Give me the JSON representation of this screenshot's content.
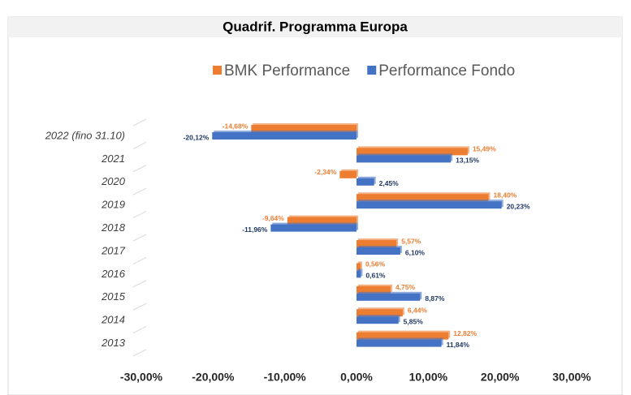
{
  "chart_data": {
    "type": "bar",
    "orientation": "horizontal",
    "title": "Quadrif. Programma Europa",
    "categories": [
      "2022 (fino 31.10)",
      "2021",
      "2020",
      "2019",
      "2018",
      "2017",
      "2016",
      "2015",
      "2014",
      "2013"
    ],
    "series": [
      {
        "name": "BMK Performance",
        "color": "#ed7d31",
        "values": [
          -14.68,
          15.49,
          -2.34,
          18.4,
          -9.64,
          5.57,
          0.56,
          4.75,
          6.44,
          12.82
        ],
        "value_labels": [
          "-14,68%",
          "15,49%",
          "-2,34%",
          "18,40%",
          "-9,64%",
          "5,57%",
          "0,56%",
          "4,75%",
          "6,44%",
          "12,82%"
        ]
      },
      {
        "name": "Performance Fondo",
        "color": "#4472c4",
        "values": [
          -20.12,
          13.15,
          2.45,
          20.23,
          -11.96,
          6.1,
          0.61,
          8.87,
          5.85,
          11.84
        ],
        "value_labels": [
          "-20,12%",
          "13,15%",
          "2,45%",
          "20,23%",
          "-11,96%",
          "6,10%",
          "0,61%",
          "8,87%",
          "5,85%",
          "11,84%"
        ]
      }
    ],
    "xlim": [
      -30,
      30
    ],
    "xticks": [
      {
        "value": -30,
        "label": "-30,00%"
      },
      {
        "value": -20,
        "label": "-20,00%"
      },
      {
        "value": -10,
        "label": "-10,00%"
      },
      {
        "value": 0,
        "label": "0,00%"
      },
      {
        "value": 10,
        "label": "10,00%"
      },
      {
        "value": 20,
        "label": "20,00%"
      },
      {
        "value": 30,
        "label": "30,00%"
      }
    ],
    "legend": "top"
  }
}
